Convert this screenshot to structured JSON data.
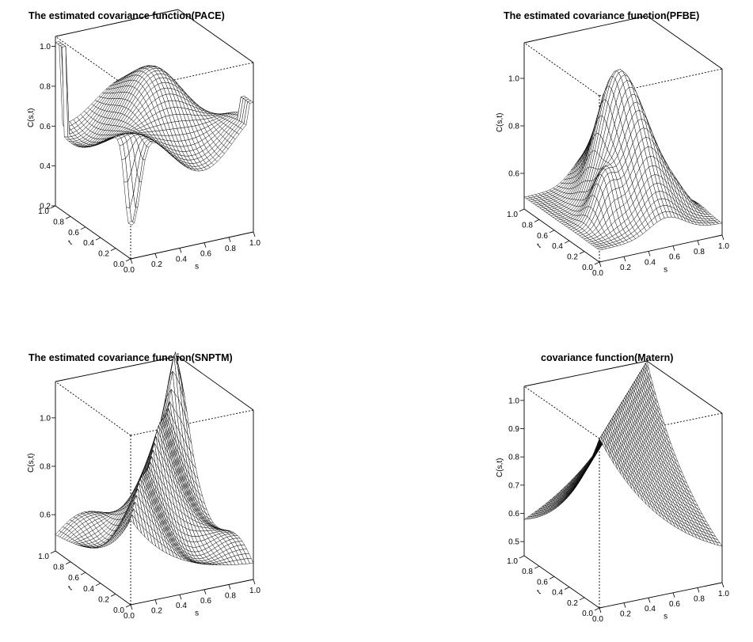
{
  "chart_data": [
    {
      "type": "surface",
      "title": "The estimated covariance function(PACE)",
      "zlabel": "C(s,t)",
      "xlabel": "s",
      "ylabel": "t",
      "s_ticks": [
        "0.0",
        "0.2",
        "0.4",
        "0.6",
        "0.8",
        "1.0"
      ],
      "t_ticks": [
        "0.0",
        "0.2",
        "0.4",
        "0.6",
        "0.8",
        "1.0"
      ],
      "z_ticks": [
        "0.2",
        "0.4",
        "0.6",
        "0.8",
        "1.0"
      ],
      "zlim": [
        0.2,
        1.05
      ]
    },
    {
      "type": "surface",
      "title": "The estimated covariance function(PFBE)",
      "zlabel": "C(s,t)",
      "xlabel": "s",
      "ylabel": "t",
      "s_ticks": [
        "0.0",
        "0.2",
        "0.4",
        "0.6",
        "0.8",
        "1.0"
      ],
      "t_ticks": [
        "0.0",
        "0.2",
        "0.4",
        "0.6",
        "0.8",
        "1.0"
      ],
      "z_ticks": [
        "0.6",
        "0.8",
        "1.0"
      ],
      "zlim": [
        0.45,
        1.15
      ]
    },
    {
      "type": "surface",
      "title": "The estimated covariance function(SNPTM)",
      "zlabel": "C(s,t)",
      "xlabel": "s",
      "ylabel": "t",
      "s_ticks": [
        "0.0",
        "0.2",
        "0.4",
        "0.6",
        "0.8",
        "1.0"
      ],
      "t_ticks": [
        "0.0",
        "0.2",
        "0.4",
        "0.6",
        "0.8",
        "1.0"
      ],
      "z_ticks": [
        "0.6",
        "0.8",
        "1.0"
      ],
      "zlim": [
        0.45,
        1.15
      ]
    },
    {
      "type": "surface",
      "title": "covariance function(Matern)",
      "zlabel": "C(s,t)",
      "xlabel": "s",
      "ylabel": "t",
      "s_ticks": [
        "0.0",
        "0.2",
        "0.4",
        "0.6",
        "0.8",
        "1.0"
      ],
      "t_ticks": [
        "0.0",
        "0.2",
        "0.4",
        "0.6",
        "0.8",
        "1.0"
      ],
      "z_ticks": [
        "0.5",
        "0.6",
        "0.7",
        "0.8",
        "0.9",
        "1.0"
      ],
      "zlim": [
        0.45,
        1.05
      ]
    }
  ]
}
